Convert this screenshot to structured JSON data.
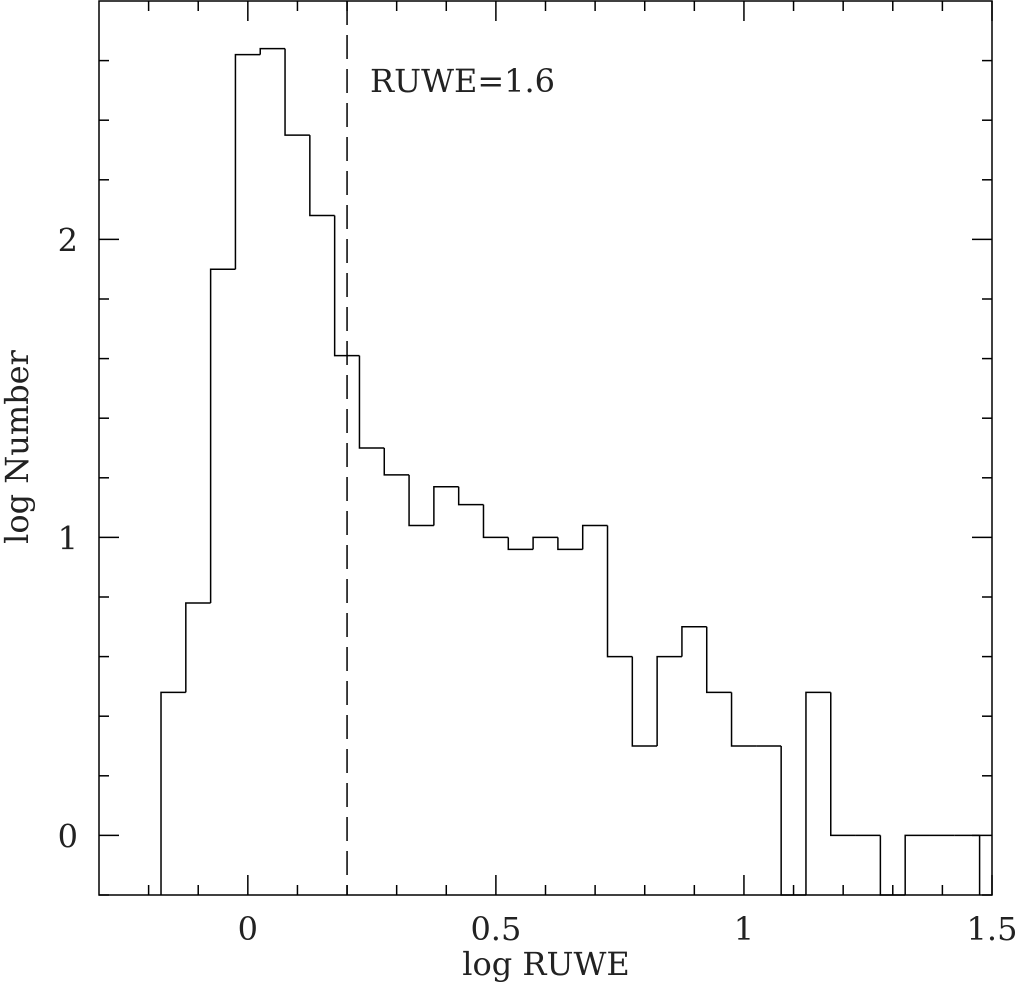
{
  "chart_data": {
    "type": "histogram",
    "x_label": "log RUWE",
    "y_label": "log Number",
    "annotation": "RUWE=1.6",
    "vline": 0.2,
    "bins": [
      -0.175,
      -0.125,
      -0.075,
      -0.025,
      0.025,
      0.075,
      0.125,
      0.175,
      0.225,
      0.275,
      0.325,
      0.375,
      0.425,
      0.475,
      0.525,
      0.575,
      0.625,
      0.675,
      0.725,
      0.775,
      0.825,
      0.875,
      0.925,
      0.975,
      1.025,
      1.075,
      1.125,
      1.175,
      1.225,
      1.275,
      1.325,
      1.375,
      1.425,
      1.475
    ],
    "values": [
      0.48,
      0.78,
      1.9,
      2.62,
      2.64,
      2.35,
      2.08,
      1.61,
      1.3,
      1.21,
      1.04,
      1.17,
      1.11,
      1.0,
      0.96,
      1.0,
      0.96,
      1.04,
      0.6,
      0.3,
      0.6,
      0.7,
      0.48,
      0.3,
      0.3,
      null,
      0.48,
      0,
      0,
      null,
      0,
      0,
      0
    ],
    "color": "#000000",
    "xlim": [
      -0.3,
      1.5
    ],
    "ylim": [
      -0.2,
      2.8
    ],
    "xticks": [
      0,
      0.5,
      1,
      1.5
    ],
    "yticks": [
      0,
      1,
      2
    ],
    "xminorticks": [
      -0.2,
      -0.1,
      0.1,
      0.2,
      0.3,
      0.4,
      0.6,
      0.7,
      0.8,
      0.9,
      1.1,
      1.2,
      1.3,
      1.4
    ],
    "yminorticks": [
      -0.2,
      0.2,
      0.4,
      0.6,
      0.8,
      1.2,
      1.4,
      1.6,
      1.8,
      2.2,
      2.4,
      2.6
    ]
  }
}
